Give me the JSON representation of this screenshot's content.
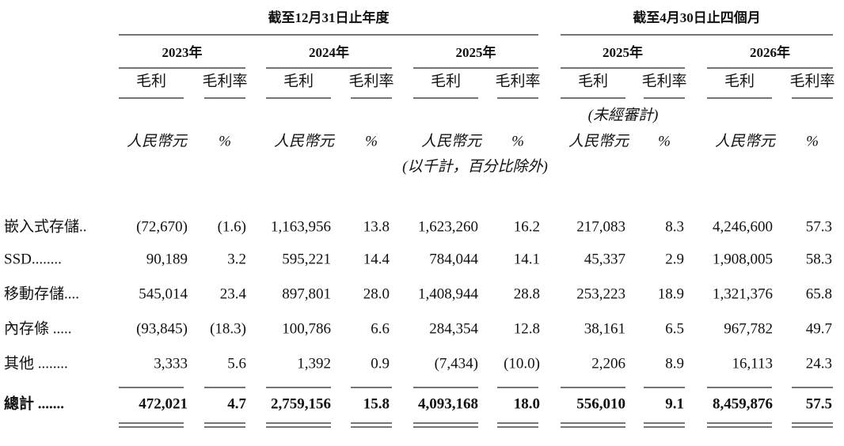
{
  "header": {
    "groups": [
      "截至12月31日止年度",
      "截至4月30日止四個月"
    ],
    "years": [
      "2023年",
      "2024年",
      "2025年",
      "2025年",
      "2026年"
    ],
    "columns": [
      "毛利",
      "毛利率",
      "毛利",
      "毛利率",
      "毛利",
      "毛利率",
      "毛利",
      "毛利率",
      "毛利",
      "毛利率"
    ],
    "unaudited": "(未經審計)",
    "units": [
      "人民幣元",
      "%",
      "人民幣元",
      "%",
      "人民幣元",
      "%",
      "人民幣元",
      "%",
      "人民幣元",
      "%"
    ],
    "note": "(以千計，百分比除外)"
  },
  "table": {
    "rows": [
      {
        "label": "嵌入式存儲..",
        "cells": [
          "(72,670)",
          "(1.6)",
          "1,163,956",
          "13.8",
          "1,623,260",
          "16.2",
          "217,083",
          "8.3",
          "4,246,600",
          "57.3"
        ]
      },
      {
        "label": "SSD........",
        "cells": [
          "90,189",
          "3.2",
          "595,221",
          "14.4",
          "784,044",
          "14.1",
          "45,337",
          "2.9",
          "1,908,005",
          "58.3"
        ]
      },
      {
        "label": "移動存儲....",
        "cells": [
          "545,014",
          "23.4",
          "897,801",
          "28.0",
          "1,408,944",
          "28.8",
          "253,223",
          "18.9",
          "1,321,376",
          "65.8"
        ]
      },
      {
        "label": "內存條 .....",
        "cells": [
          "(93,845)",
          "(18.3)",
          "100,786",
          "6.6",
          "284,354",
          "12.8",
          "38,161",
          "6.5",
          "967,782",
          "49.7"
        ]
      },
      {
        "label": "其他 ........",
        "cells": [
          "3,333",
          "5.6",
          "1,392",
          "0.9",
          "(7,434)",
          "(10.0)",
          "2,206",
          "8.9",
          "16,113",
          "24.3"
        ]
      },
      {
        "label": "總計 .......",
        "cells": [
          "472,021",
          "4.7",
          "2,759,156",
          "15.8",
          "4,093,168",
          "18.0",
          "556,010",
          "9.1",
          "8,459,876",
          "57.5"
        ]
      }
    ]
  }
}
